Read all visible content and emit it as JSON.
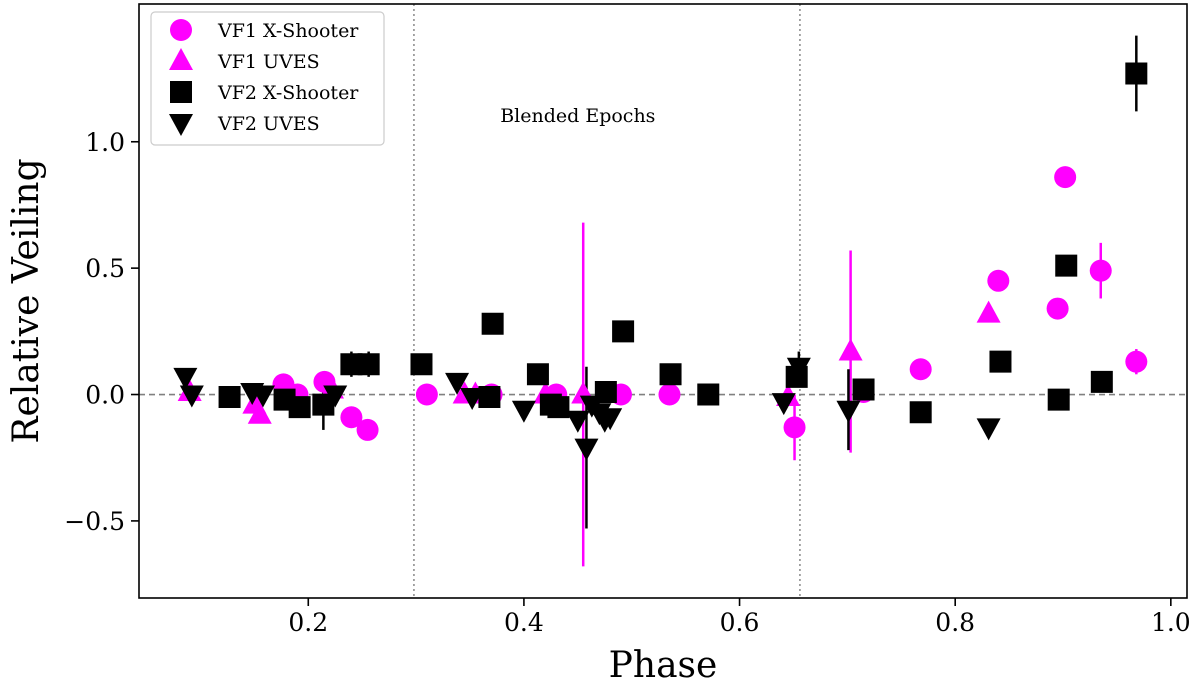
{
  "chart_data": {
    "type": "scatter",
    "xlabel": "Phase",
    "ylabel": "Relative Veiling",
    "xlim": [
      0.043,
      1.015
    ],
    "ylim": [
      -0.805,
      1.545
    ],
    "xticks": [
      0.2,
      0.4,
      0.6,
      0.8,
      1.0
    ],
    "xtick_labels": [
      "0.2",
      "0.4",
      "0.6",
      "0.8",
      "1.0"
    ],
    "yticks": [
      -0.5,
      0.0,
      0.5,
      1.0
    ],
    "ytick_labels": [
      "−0.5",
      "0.0",
      "0.5",
      "1.0"
    ],
    "grid": false,
    "legend_position": "top-left",
    "reference_line_y": 0.0,
    "vertical_lines_x": [
      0.298,
      0.656
    ],
    "annotation": {
      "text": "Blended Epochs",
      "x": 0.45,
      "y": 1.105
    },
    "series": [
      {
        "name": "VF1 X-Shooter",
        "marker": "circle",
        "color": "#ff00ff",
        "points": [
          {
            "x": 0.177,
            "y": 0.04
          },
          {
            "x": 0.19,
            "y": 0.0
          },
          {
            "x": 0.215,
            "y": 0.05
          },
          {
            "x": 0.24,
            "y": -0.09
          },
          {
            "x": 0.255,
            "y": -0.14
          },
          {
            "x": 0.31,
            "y": 0.0
          },
          {
            "x": 0.37,
            "y": 0.0
          },
          {
            "x": 0.43,
            "y": 0.0
          },
          {
            "x": 0.49,
            "y": 0.0
          },
          {
            "x": 0.535,
            "y": 0.0
          },
          {
            "x": 0.651,
            "y": -0.13,
            "err": 0.13
          },
          {
            "x": 0.715,
            "y": 0.01
          },
          {
            "x": 0.768,
            "y": 0.1
          },
          {
            "x": 0.84,
            "y": 0.45
          },
          {
            "x": 0.895,
            "y": 0.34
          },
          {
            "x": 0.902,
            "y": 0.86
          },
          {
            "x": 0.935,
            "y": 0.49,
            "err": 0.11
          },
          {
            "x": 0.968,
            "y": 0.13,
            "err": 0.05
          }
        ]
      },
      {
        "name": "VF1 UVES",
        "marker": "triangle-up",
        "color": "#ff00ff",
        "points": [
          {
            "x": 0.09,
            "y": 0.01
          },
          {
            "x": 0.15,
            "y": -0.04
          },
          {
            "x": 0.155,
            "y": -0.08
          },
          {
            "x": 0.222,
            "y": 0.02
          },
          {
            "x": 0.345,
            "y": 0.0
          },
          {
            "x": 0.355,
            "y": 0.0
          },
          {
            "x": 0.42,
            "y": 0.0
          },
          {
            "x": 0.455,
            "y": 0.0,
            "err": 0.68
          },
          {
            "x": 0.645,
            "y": -0.01
          },
          {
            "x": 0.703,
            "y": 0.17,
            "err": 0.4
          },
          {
            "x": 0.831,
            "y": 0.32
          }
        ]
      },
      {
        "name": "VF2 X-Shooter",
        "marker": "square",
        "color": "#000000",
        "points": [
          {
            "x": 0.127,
            "y": -0.01
          },
          {
            "x": 0.178,
            "y": -0.02
          },
          {
            "x": 0.192,
            "y": -0.05
          },
          {
            "x": 0.214,
            "y": -0.04,
            "err": 0.1
          },
          {
            "x": 0.24,
            "y": 0.12,
            "err": 0.05
          },
          {
            "x": 0.256,
            "y": 0.12,
            "err": 0.05
          },
          {
            "x": 0.305,
            "y": 0.12
          },
          {
            "x": 0.368,
            "y": -0.01
          },
          {
            "x": 0.371,
            "y": 0.28
          },
          {
            "x": 0.413,
            "y": 0.08
          },
          {
            "x": 0.425,
            "y": -0.04
          },
          {
            "x": 0.432,
            "y": -0.05
          },
          {
            "x": 0.476,
            "y": 0.01
          },
          {
            "x": 0.492,
            "y": 0.25
          },
          {
            "x": 0.536,
            "y": 0.08
          },
          {
            "x": 0.571,
            "y": 0.0
          },
          {
            "x": 0.653,
            "y": 0.07
          },
          {
            "x": 0.715,
            "y": 0.02
          },
          {
            "x": 0.768,
            "y": -0.07
          },
          {
            "x": 0.842,
            "y": 0.13
          },
          {
            "x": 0.896,
            "y": -0.02
          },
          {
            "x": 0.903,
            "y": 0.51
          },
          {
            "x": 0.936,
            "y": 0.05
          },
          {
            "x": 0.968,
            "y": 1.27,
            "err": 0.15
          }
        ]
      },
      {
        "name": "VF2 UVES",
        "marker": "triangle-down",
        "color": "#000000",
        "points": [
          {
            "x": 0.086,
            "y": 0.07
          },
          {
            "x": 0.092,
            "y": 0.0
          },
          {
            "x": 0.148,
            "y": 0.01
          },
          {
            "x": 0.158,
            "y": 0.0
          },
          {
            "x": 0.225,
            "y": 0.0
          },
          {
            "x": 0.338,
            "y": 0.05
          },
          {
            "x": 0.352,
            "y": -0.01
          },
          {
            "x": 0.4,
            "y": -0.06
          },
          {
            "x": 0.45,
            "y": -0.1
          },
          {
            "x": 0.458,
            "y": -0.21,
            "err": 0.32
          },
          {
            "x": 0.463,
            "y": -0.04
          },
          {
            "x": 0.47,
            "y": -0.07
          },
          {
            "x": 0.475,
            "y": -0.1
          },
          {
            "x": 0.48,
            "y": -0.09
          },
          {
            "x": 0.641,
            "y": -0.03
          },
          {
            "x": 0.655,
            "y": 0.11,
            "err": 0.06
          },
          {
            "x": 0.701,
            "y": -0.06,
            "err": 0.16
          },
          {
            "x": 0.831,
            "y": -0.13
          }
        ]
      }
    ]
  }
}
